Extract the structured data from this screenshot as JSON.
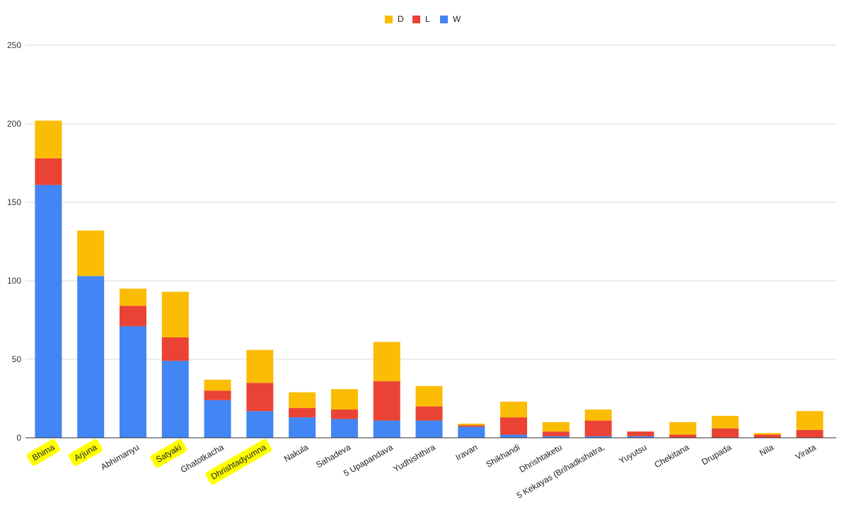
{
  "chart_data": {
    "type": "bar",
    "stacked": true,
    "categories": [
      "Bhima",
      "Arjuna",
      "Abhimanyu",
      "Satyaki",
      "Ghatotkacha",
      "Dhrishtadyumna",
      "Nakula",
      "Sahadeva",
      "5 Upapandava",
      "Yudhishthira",
      "Iravan",
      "Shikhandi",
      "Dhrishtaketu",
      "5 Kekayas (Brihadkshatra,",
      "Yuyutsu",
      "Chekitana",
      "Drupada",
      "Nila",
      "Virata"
    ],
    "highlighted_categories": [
      "Bhima",
      "Arjuna",
      "Satyaki",
      "Dhrishtadyumna"
    ],
    "series": [
      {
        "name": "W",
        "color": "#4285f4",
        "values": [
          161,
          103,
          71,
          49,
          24,
          17,
          13,
          12,
          11,
          11,
          7,
          2,
          1,
          1,
          1,
          0,
          0,
          0,
          0
        ]
      },
      {
        "name": "L",
        "color": "#ea4335",
        "values": [
          17,
          0,
          13,
          15,
          6,
          18,
          6,
          6,
          25,
          9,
          1,
          11,
          3,
          10,
          3,
          2,
          6,
          2,
          5
        ]
      },
      {
        "name": "D",
        "color": "#fbbc04",
        "values": [
          24,
          29,
          11,
          29,
          7,
          21,
          10,
          13,
          25,
          13,
          1,
          10,
          6,
          7,
          0,
          8,
          8,
          1,
          12
        ]
      }
    ],
    "legend_order": [
      "D",
      "L",
      "W"
    ],
    "legend_position": "top",
    "ylim": [
      0,
      250
    ],
    "yticks": [
      0,
      50,
      100,
      150,
      200,
      250
    ],
    "grid": true,
    "title": "",
    "xlabel": "",
    "ylabel": "",
    "highlight_color": "#ffff00"
  }
}
